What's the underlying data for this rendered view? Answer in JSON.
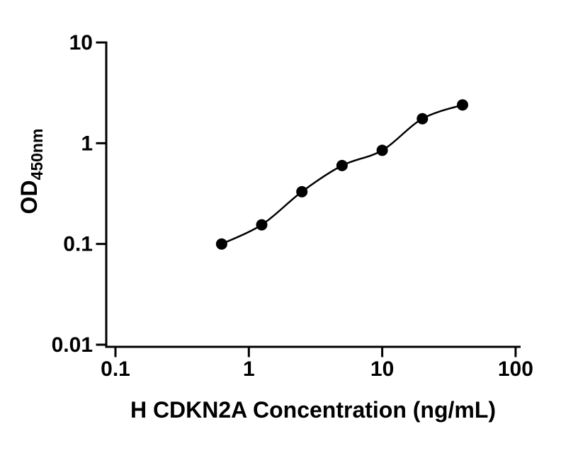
{
  "figure": {
    "background": "#ffffff",
    "kind": "elisa-standard-curve"
  },
  "chart_data": {
    "type": "scatter",
    "title": "",
    "xlabel": "H CDKN2A Concentration (ng/mL)",
    "ylabel": "OD450nm",
    "ylabel_base": "OD",
    "ylabel_sub": "450nm",
    "x_scale": "log",
    "y_scale": "log",
    "xlim": [
      0.1,
      100
    ],
    "ylim": [
      0.01,
      10
    ],
    "x_ticks": [
      0.1,
      1,
      10,
      100
    ],
    "x_tick_labels": [
      "0.1",
      "1",
      "10",
      "100"
    ],
    "y_ticks": [
      0.01,
      0.1,
      1,
      10
    ],
    "y_tick_labels": [
      "0.01",
      "0.1",
      "1",
      "10"
    ],
    "grid": false,
    "legend": "none",
    "points": [
      {
        "x": 0.625,
        "y": 0.1
      },
      {
        "x": 1.25,
        "y": 0.155
      },
      {
        "x": 2.5,
        "y": 0.33
      },
      {
        "x": 5,
        "y": 0.6
      },
      {
        "x": 10,
        "y": 0.85
      },
      {
        "x": 20,
        "y": 1.75
      },
      {
        "x": 40,
        "y": 2.4
      }
    ],
    "curve": "smooth-fit-through-points",
    "marker": {
      "shape": "circle",
      "color": "#000000",
      "radius_px": 8
    },
    "line_color": "#000000",
    "axis_color": "#000000"
  }
}
